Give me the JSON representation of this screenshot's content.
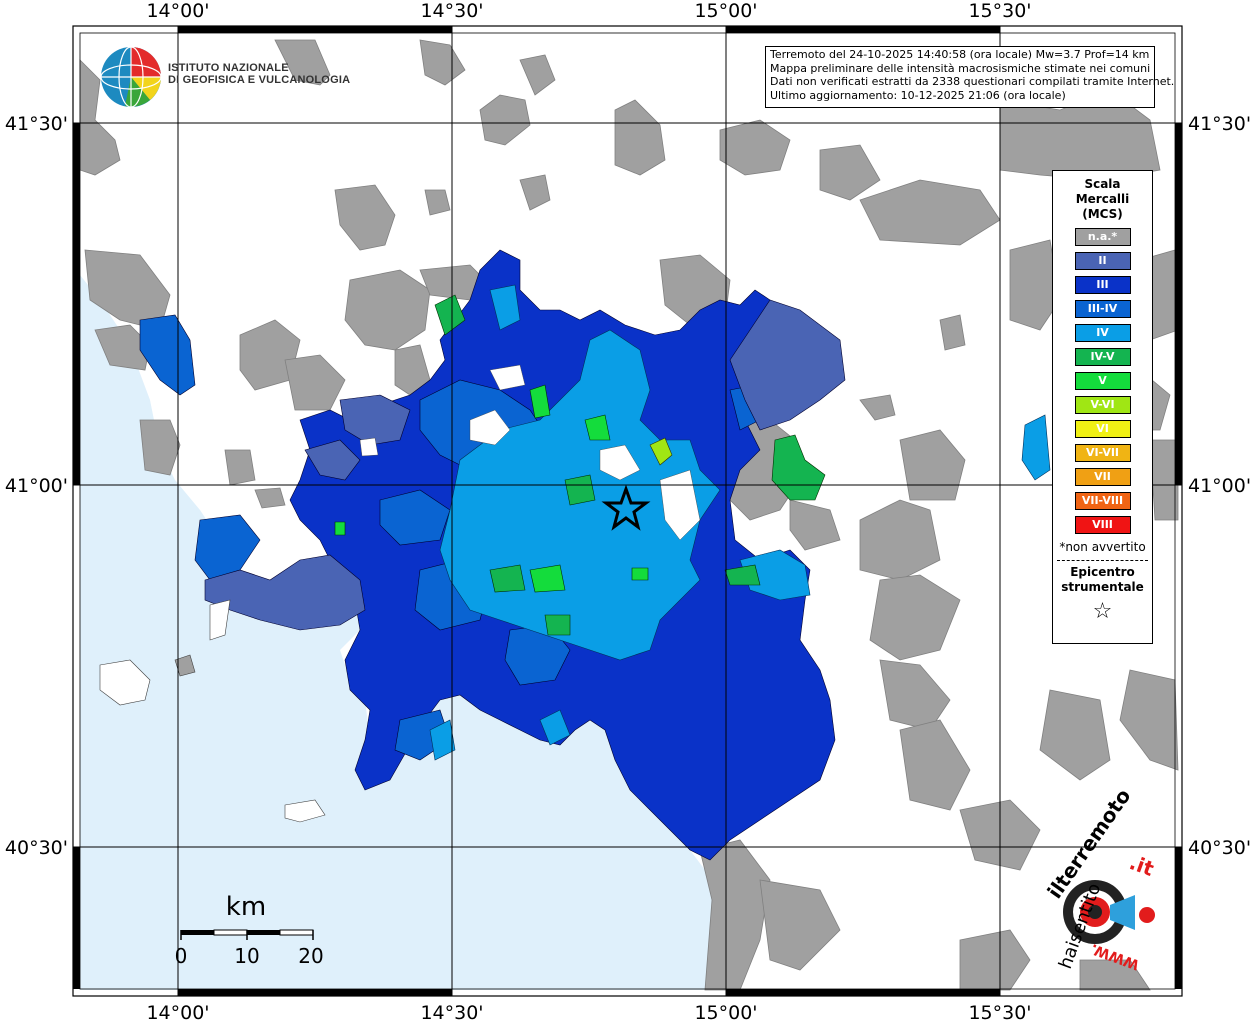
{
  "map": {
    "longitude_labels": [
      "14°00'",
      "14°30'",
      "15°00'",
      "15°30'"
    ],
    "latitude_labels": [
      "41°30'",
      "41°00'",
      "40°30'"
    ]
  },
  "logo": {
    "line1": "ISTITUTO NAZIONALE",
    "line2": "DI GEOFISICA E VULCANOLOGIA"
  },
  "info": {
    "line1": "Terremoto del 24-10-2025 14:40:58 (ora locale) Mw=3.7 Prof=14 km",
    "line2": "Mappa preliminare delle intensità macrosismiche stimate nei comuni",
    "line3": "Dati non verificati estratti da 2338 questionari compilati tramite Internet.",
    "line4": "Ultimo aggiornamento: 10-12-2025 21:06 (ora locale)"
  },
  "legend": {
    "title_line1": "Scala",
    "title_line2": "Mercalli",
    "title_line3": "(MCS)",
    "items": [
      {
        "label": "n.a.*",
        "color": "#a0a0a0"
      },
      {
        "label": "II",
        "color": "#4a64b4"
      },
      {
        "label": "III",
        "color": "#0a32c8"
      },
      {
        "label": "III-IV",
        "color": "#0a64d2"
      },
      {
        "label": "IV",
        "color": "#0a9ee6"
      },
      {
        "label": "IV-V",
        "color": "#14b450"
      },
      {
        "label": "V",
        "color": "#14dc3c"
      },
      {
        "label": "V-VI",
        "color": "#a0e614"
      },
      {
        "label": "VI",
        "color": "#f0f014"
      },
      {
        "label": "VI-VII",
        "color": "#f0b414"
      },
      {
        "label": "VII",
        "color": "#f0a014"
      },
      {
        "label": "VII-VIII",
        "color": "#f06414"
      },
      {
        "label": "VIII",
        "color": "#f01414"
      }
    ],
    "note": "*non avvertito",
    "epicenter_line1": "Epicentro",
    "epicenter_line2": "strumentale"
  },
  "scale_bar": {
    "unit": "km",
    "labels": [
      "0",
      "10",
      "20"
    ]
  },
  "watermark": {
    "text1": "haisentito",
    "text2": "ilterremoto",
    "text3": ".it",
    "text4": "WWW."
  },
  "colors": {
    "sea": "#dff0fb",
    "land": "#ffffff",
    "na_gray": "#a0a0a0",
    "grid": "#000000"
  }
}
